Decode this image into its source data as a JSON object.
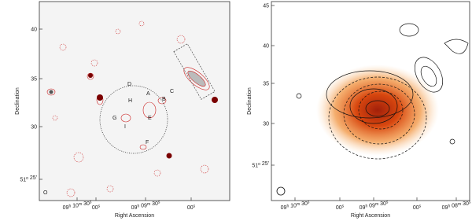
{
  "panels": [
    {
      "x_label": "Right Ascension",
      "y_label": "Declination",
      "x_ticks": [
        [
          {
            "t": "09"
          },
          {
            "sup": "h"
          },
          {
            "t": " 10"
          },
          {
            "sup": "m"
          },
          {
            "t": " 30"
          },
          {
            "sup": "s"
          }
        ],
        [
          {
            "t": "00"
          },
          {
            "sup": "s"
          }
        ],
        [
          {
            "t": "09"
          },
          {
            "sup": "h"
          },
          {
            "t": " 09"
          },
          {
            "sup": "m"
          },
          {
            "t": " 30"
          },
          {
            "sup": "s"
          }
        ],
        [
          {
            "t": "00"
          },
          {
            "sup": "s"
          }
        ]
      ],
      "y_ticks": [
        [
          {
            "t": "40"
          }
        ],
        [
          {
            "t": "35"
          }
        ],
        [
          {
            "t": "30"
          }
        ],
        [
          {
            "t": "51"
          },
          {
            "sup": "o"
          },
          {
            "t": " 25'"
          }
        ]
      ],
      "source_labels": [
        "A",
        "B",
        "C",
        "D",
        "E",
        "F",
        "G",
        "H",
        "I",
        "O"
      ]
    },
    {
      "x_label": "Right Ascension",
      "y_label": "Declination",
      "x_ticks": [
        [
          {
            "t": "09"
          },
          {
            "sup": "h"
          },
          {
            "t": " 10"
          },
          {
            "sup": "m"
          },
          {
            "t": " 30"
          },
          {
            "sup": "s"
          }
        ],
        [
          {
            "t": "00"
          },
          {
            "sup": "s"
          }
        ],
        [
          {
            "t": "09"
          },
          {
            "sup": "h"
          },
          {
            "t": " 09"
          },
          {
            "sup": "m"
          },
          {
            "t": " 30"
          },
          {
            "sup": "s"
          }
        ],
        [
          {
            "t": "00"
          },
          {
            "sup": "s"
          }
        ],
        [
          {
            "t": "09"
          },
          {
            "sup": "h"
          },
          {
            "t": " 08"
          },
          {
            "sup": "m"
          },
          {
            "t": " 30"
          },
          {
            "sup": "s"
          }
        ]
      ],
      "y_ticks": [
        [
          {
            "t": "45"
          }
        ],
        [
          {
            "t": "40"
          }
        ],
        [
          {
            "t": "35"
          }
        ],
        [
          {
            "t": "30"
          }
        ],
        [
          {
            "t": "51"
          },
          {
            "sup": "o"
          },
          {
            "t": " 25'"
          }
        ]
      ]
    }
  ]
}
